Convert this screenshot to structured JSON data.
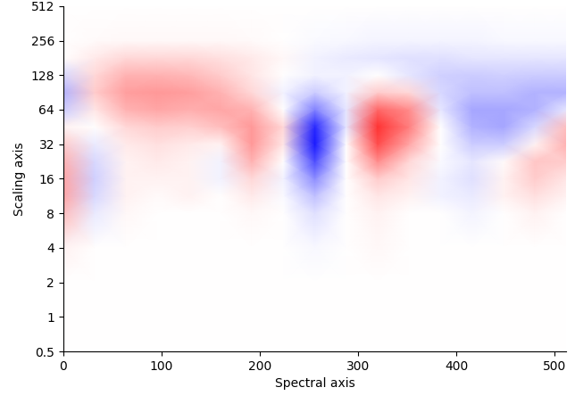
{
  "chart_data": {
    "type": "heatmap",
    "x_label": "Spectral axis",
    "y_label": "Scaling axis",
    "log": "y",
    "x": [
      0,
      32,
      64,
      96,
      128,
      160,
      192,
      224,
      256,
      288,
      320,
      352,
      384,
      416,
      448,
      480,
      512
    ],
    "scales": [
      0.5,
      1,
      2,
      4,
      8,
      11.3,
      16,
      22.6,
      32,
      45.3,
      64,
      90.5,
      128,
      181,
      256,
      512
    ],
    "cells": [
      [
        0,
        0,
        0,
        0,
        0,
        0,
        0,
        0,
        0,
        0,
        0,
        0,
        0,
        0,
        0,
        0,
        0
      ],
      [
        0,
        0,
        0,
        0,
        0,
        0,
        0,
        0,
        0,
        0,
        0,
        0,
        0,
        0,
        0,
        0,
        0
      ],
      [
        0,
        0,
        0,
        0,
        0,
        0,
        0,
        0,
        0,
        0,
        0,
        0,
        0,
        0,
        0,
        0,
        0
      ],
      [
        0.05,
        0,
        0,
        0,
        0,
        0,
        0,
        0,
        -0.03,
        0,
        0.03,
        0,
        0,
        0,
        0,
        0,
        0
      ],
      [
        0.25,
        -0.08,
        0.03,
        0,
        0,
        0,
        0.03,
        0,
        -0.12,
        0,
        0.05,
        0,
        0,
        -0.04,
        0,
        0.05,
        0
      ],
      [
        0.35,
        -0.15,
        0.05,
        0.02,
        0.05,
        0,
        0.08,
        -0.02,
        -0.25,
        0,
        0.1,
        0.05,
        -0.05,
        -0.08,
        0.05,
        0.12,
        0.05
      ],
      [
        0.35,
        -0.18,
        0.05,
        0.05,
        0.05,
        -0.05,
        0.15,
        -0.05,
        -0.45,
        0,
        0.2,
        0.1,
        -0.05,
        -0.12,
        0.05,
        0.2,
        0.1
      ],
      [
        0.3,
        -0.15,
        0.05,
        0.08,
        0.05,
        -0.05,
        0.3,
        0,
        -0.7,
        0,
        0.45,
        0.15,
        -0.02,
        -0.1,
        0.02,
        0.22,
        0.2
      ],
      [
        0.2,
        -0.08,
        0.08,
        0.12,
        0.08,
        0.05,
        0.4,
        0.1,
        -0.9,
        0,
        0.7,
        0.35,
        0,
        -0.2,
        -0.2,
        0.05,
        0.3
      ],
      [
        0.05,
        0,
        0.15,
        0.2,
        0.18,
        0.25,
        0.4,
        0.15,
        -0.85,
        -0.1,
        0.8,
        0.5,
        0,
        -0.3,
        -0.35,
        -0.15,
        0.25
      ],
      [
        -0.2,
        0.1,
        0.3,
        0.35,
        0.32,
        0.35,
        0.3,
        0,
        -0.5,
        -0.1,
        0.6,
        0.45,
        -0.1,
        -0.35,
        -0.35,
        -0.3,
        -0.1
      ],
      [
        -0.3,
        0.2,
        0.38,
        0.4,
        0.38,
        0.3,
        0.15,
        -0.05,
        -0.2,
        -0.05,
        0.2,
        0.15,
        -0.15,
        -0.25,
        -0.25,
        -0.3,
        -0.3
      ],
      [
        -0.15,
        0.15,
        0.3,
        0.3,
        0.28,
        0.2,
        0.1,
        0,
        -0.05,
        -0.05,
        0,
        -0.1,
        -0.18,
        -0.2,
        -0.18,
        -0.2,
        -0.2
      ],
      [
        0,
        0.08,
        0.15,
        0.15,
        0.15,
        0.12,
        0.08,
        0.03,
        -0.05,
        -0.08,
        -0.1,
        -0.12,
        -0.12,
        -0.1,
        -0.1,
        -0.1,
        -0.1
      ],
      [
        0,
        0.02,
        0.03,
        0.03,
        0.03,
        0.03,
        0.02,
        0,
        -0.02,
        -0.03,
        -0.04,
        -0.04,
        -0.04,
        -0.04,
        -0.03,
        -0.03,
        -0.03
      ],
      [
        0,
        0,
        0,
        0,
        0,
        0,
        0,
        0,
        0,
        0,
        0,
        0,
        0,
        0,
        0,
        0,
        0
      ]
    ],
    "color_range": [
      -1,
      1
    ],
    "xlim": [
      0,
      512
    ],
    "xticks": [
      0,
      100,
      200,
      300,
      400,
      500
    ],
    "ylim": [
      0.5,
      512
    ],
    "yticks": [
      0.5,
      1,
      2,
      4,
      8,
      16,
      32,
      64,
      128,
      256,
      512
    ]
  }
}
